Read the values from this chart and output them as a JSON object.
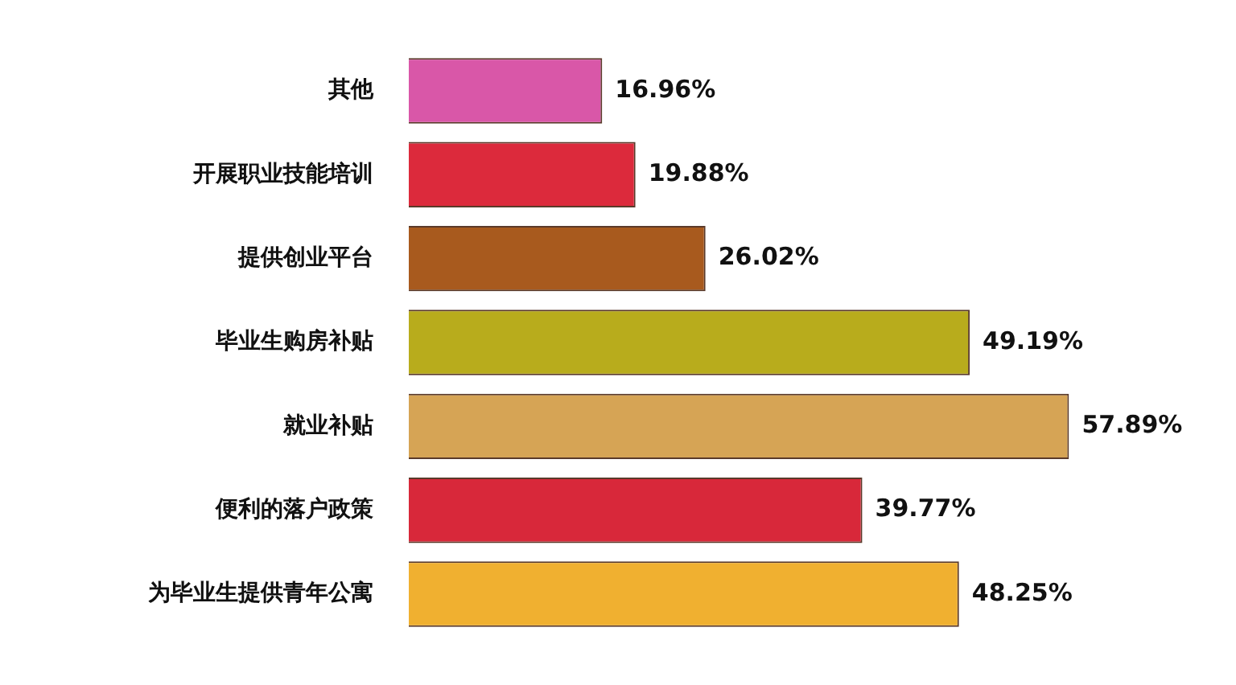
{
  "chart_data": {
    "type": "bar",
    "orientation": "horizontal",
    "legend": false,
    "categories": [
      "其他",
      "开展职业技能培训",
      "提供创业平台",
      "毕业生购房补贴",
      "就业补贴",
      "便利的落户政策",
      "为毕业生提供青年公寓"
    ],
    "values": [
      16.96,
      19.88,
      26.02,
      49.19,
      57.89,
      39.77,
      48.25
    ],
    "value_labels": [
      "16.96%",
      "19.88%",
      "26.02%",
      "49.19%",
      "57.89%",
      "39.77%",
      "48.25%"
    ],
    "colors": [
      "#d957a8",
      "#dc2a3c",
      "#a85a1e",
      "#b8ac1c",
      "#d6a455",
      "#d8283a",
      "#f0b030"
    ]
  }
}
